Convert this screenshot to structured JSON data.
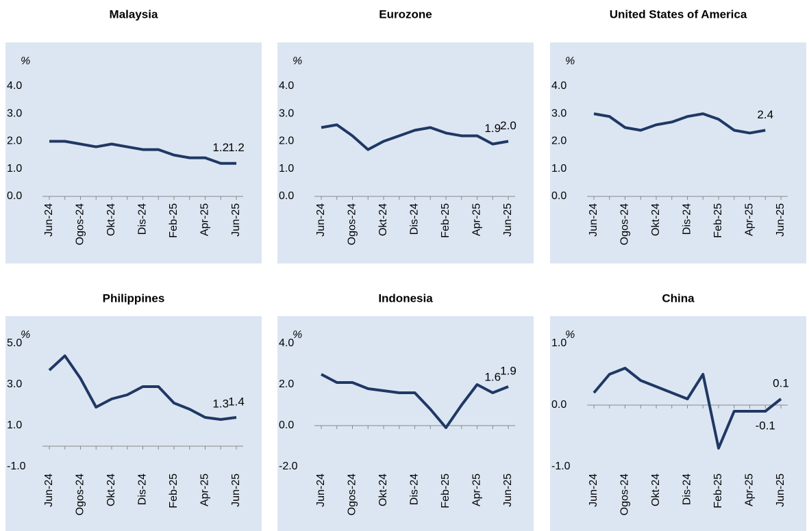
{
  "chart_data": [
    {
      "type": "line",
      "title": "Malaysia",
      "y_label": "%",
      "color": "#1f3864",
      "categories": [
        "Jun-24",
        null,
        "Ogos-24",
        null,
        "Okt-24",
        null,
        "Dis-24",
        null,
        "Feb-25",
        null,
        "Apr-25",
        null,
        "Jun-25"
      ],
      "values": [
        2.0,
        2.0,
        1.9,
        1.8,
        1.9,
        1.8,
        1.7,
        1.7,
        1.5,
        1.4,
        1.4,
        1.2,
        1.2
      ],
      "value_labels": [
        null,
        null,
        null,
        null,
        null,
        null,
        null,
        null,
        null,
        null,
        null,
        "1.2",
        "1.2"
      ],
      "ylim": [
        0,
        4
      ],
      "yticks": [
        {
          "value": 0,
          "label": "0.0"
        },
        {
          "value": 1,
          "label": "1.0"
        },
        {
          "value": 2,
          "label": "2.0"
        },
        {
          "value": 3,
          "label": "3.0"
        },
        {
          "value": 4,
          "label": "4.0"
        }
      ]
    },
    {
      "type": "line",
      "title": "Eurozone",
      "y_label": "%",
      "color": "#1f3864",
      "categories": [
        "Jun-24",
        null,
        "Ogos-24",
        null,
        "Okt-24",
        null,
        "Dis-24",
        null,
        "Feb-25",
        null,
        "Apr-25",
        null,
        "Jun-25"
      ],
      "values": [
        2.5,
        2.6,
        2.2,
        1.7,
        2.0,
        2.2,
        2.4,
        2.5,
        2.3,
        2.2,
        2.2,
        1.9,
        2.0
      ],
      "value_labels": [
        null,
        null,
        null,
        null,
        null,
        null,
        null,
        null,
        null,
        null,
        null,
        "1.9",
        "2.0"
      ],
      "ylim": [
        0,
        4
      ],
      "yticks": [
        {
          "value": 0,
          "label": "0.0"
        },
        {
          "value": 1,
          "label": "1.0"
        },
        {
          "value": 2,
          "label": "2.0"
        },
        {
          "value": 3,
          "label": "3.0"
        },
        {
          "value": 4,
          "label": "4.0"
        }
      ]
    },
    {
      "type": "line",
      "title": "United States of America",
      "y_label": "%",
      "color": "#1f3864",
      "categories": [
        "Jun-24",
        null,
        "Ogos-24",
        null,
        "Okt-24",
        null,
        "Dis-24",
        null,
        "Feb-25",
        null,
        "Apr-25",
        null,
        "Jun-25"
      ],
      "values": [
        3.0,
        2.9,
        2.5,
        2.4,
        2.6,
        2.7,
        2.9,
        3.0,
        2.8,
        2.4,
        2.3,
        2.4,
        null
      ],
      "value_labels": [
        null,
        null,
        null,
        null,
        null,
        null,
        null,
        null,
        null,
        null,
        null,
        "2.4",
        null
      ],
      "ylim": [
        0,
        4
      ],
      "yticks": [
        {
          "value": 0,
          "label": "0.0"
        },
        {
          "value": 1,
          "label": "1.0"
        },
        {
          "value": 2,
          "label": "2.0"
        },
        {
          "value": 3,
          "label": "3.0"
        },
        {
          "value": 4,
          "label": "4.0"
        }
      ]
    },
    {
      "type": "line",
      "title": "Philippines",
      "y_label": "%",
      "color": "#1f3864",
      "categories": [
        "Jun-24",
        null,
        "Ogos-24",
        null,
        "Okt-24",
        null,
        "Dis-24",
        null,
        "Feb-25",
        null,
        "Apr-25",
        null,
        "Jun-25"
      ],
      "values": [
        3.7,
        4.4,
        3.3,
        1.9,
        2.3,
        2.5,
        2.9,
        2.9,
        2.1,
        1.8,
        1.4,
        1.3,
        1.4
      ],
      "value_labels": [
        null,
        null,
        null,
        null,
        null,
        null,
        null,
        null,
        null,
        null,
        null,
        "1.3",
        "1.4"
      ],
      "ylim": [
        -1,
        5
      ],
      "yticks": [
        {
          "value": -1,
          "label": "-1.0"
        },
        {
          "value": 1,
          "label": "1.0"
        },
        {
          "value": 3,
          "label": "3.0"
        },
        {
          "value": 5,
          "label": "5.0"
        }
      ]
    },
    {
      "type": "line",
      "title": "Indonesia",
      "y_label": "%",
      "color": "#1f3864",
      "categories": [
        "Jun-24",
        null,
        "Ogos-24",
        null,
        "Okt-24",
        null,
        "Dis-24",
        null,
        "Feb-25",
        null,
        "Apr-25",
        null,
        "Jun-25"
      ],
      "values": [
        2.5,
        2.1,
        2.1,
        1.8,
        1.7,
        1.6,
        1.6,
        0.8,
        -0.1,
        1.0,
        2.0,
        1.6,
        1.9
      ],
      "value_labels": [
        null,
        null,
        null,
        null,
        null,
        null,
        null,
        null,
        null,
        null,
        null,
        "1.6",
        "1.9"
      ],
      "ylim": [
        -2,
        4
      ],
      "yticks": [
        {
          "value": -2,
          "label": "-2.0"
        },
        {
          "value": 0,
          "label": "0.0"
        },
        {
          "value": 2,
          "label": "2.0"
        },
        {
          "value": 4,
          "label": "4.0"
        }
      ]
    },
    {
      "type": "line",
      "title": "China",
      "y_label": "%",
      "color": "#1f3864",
      "categories": [
        "Jun-24",
        null,
        "Ogos-24",
        null,
        "Okt-24",
        null,
        "Dis-24",
        null,
        "Feb-25",
        null,
        "Apr-25",
        null,
        "Jun-25"
      ],
      "values": [
        0.2,
        0.5,
        0.6,
        0.4,
        0.3,
        0.2,
        0.1,
        0.5,
        -0.7,
        -0.1,
        -0.1,
        -0.1,
        0.1
      ],
      "value_labels": [
        null,
        null,
        null,
        null,
        null,
        null,
        null,
        null,
        null,
        null,
        null,
        "-0.1",
        "0.1"
      ],
      "ylim": [
        -1,
        1
      ],
      "yticks": [
        {
          "value": -1,
          "label": "-1.0"
        },
        {
          "value": 0,
          "label": "0.0"
        },
        {
          "value": 1,
          "label": "1.0"
        }
      ]
    }
  ]
}
